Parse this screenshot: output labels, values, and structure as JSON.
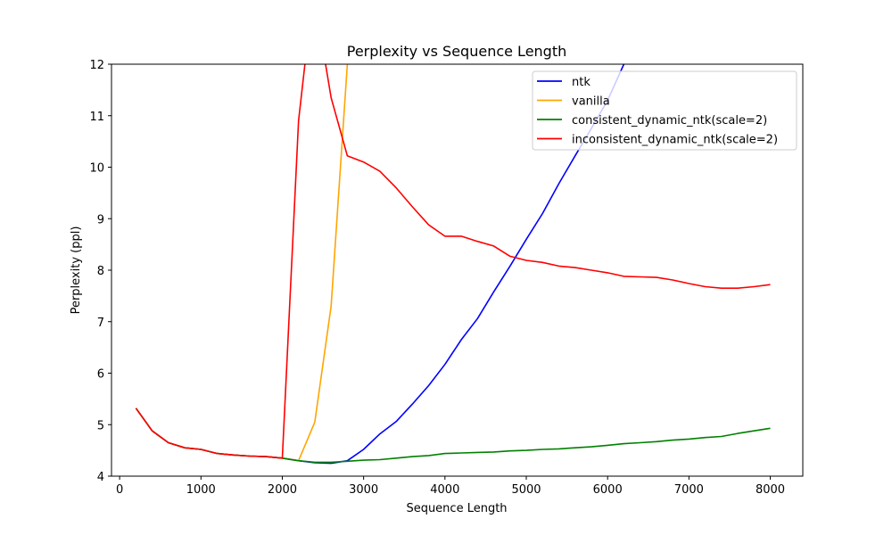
{
  "chart_data": {
    "type": "line",
    "title": "Perplexity vs Sequence Length",
    "xlabel": "Sequence Length",
    "ylabel": "Perplexity (ppl)",
    "xlim": [
      -100,
      8400
    ],
    "ylim": [
      4,
      12
    ],
    "xticks": [
      0,
      1000,
      2000,
      3000,
      4000,
      5000,
      6000,
      7000,
      8000
    ],
    "yticks": [
      4,
      5,
      6,
      7,
      8,
      9,
      10,
      11,
      12
    ],
    "grid": false,
    "legend_position": "upper right",
    "series": [
      {
        "name": "ntk",
        "color": "#0000ff",
        "x": [
          200,
          400,
          600,
          800,
          1000,
          1200,
          1400,
          1600,
          1800,
          2000,
          2200,
          2400,
          2600,
          2800,
          3000,
          3200,
          3400,
          3600,
          3800,
          4000,
          4200,
          4400,
          4600,
          4800,
          5000,
          5200,
          5400,
          5600,
          5800,
          6000,
          6200,
          6400
        ],
        "y": [
          5.32,
          4.88,
          4.65,
          4.55,
          4.52,
          4.44,
          4.41,
          4.39,
          4.38,
          4.35,
          4.3,
          4.26,
          4.25,
          4.3,
          4.52,
          4.82,
          5.06,
          5.4,
          5.76,
          6.17,
          6.65,
          7.06,
          7.58,
          8.08,
          8.6,
          9.1,
          9.68,
          10.22,
          10.75,
          11.3,
          12.0,
          12.9
        ]
      },
      {
        "name": "vanilla",
        "color": "#ffa500",
        "x": [
          200,
          400,
          600,
          800,
          1000,
          1200,
          1400,
          1600,
          1800,
          2000,
          2200,
          2400,
          2600,
          2800,
          2900
        ],
        "y": [
          5.32,
          4.88,
          4.65,
          4.55,
          4.52,
          4.44,
          4.41,
          4.39,
          4.38,
          4.35,
          4.3,
          5.05,
          7.3,
          12.0,
          14.5
        ]
      },
      {
        "name": "consistent_dynamic_ntk(scale=2)",
        "color": "#008000",
        "x": [
          200,
          400,
          600,
          800,
          1000,
          1200,
          1400,
          1600,
          1800,
          2000,
          2200,
          2400,
          2600,
          2800,
          3000,
          3200,
          3400,
          3600,
          3800,
          4000,
          4200,
          4400,
          4600,
          4800,
          5000,
          5200,
          5400,
          5600,
          5800,
          6000,
          6200,
          6400,
          6600,
          6800,
          7000,
          7200,
          7400,
          7600,
          7800,
          8000
        ],
        "y": [
          5.32,
          4.88,
          4.65,
          4.55,
          4.52,
          4.44,
          4.41,
          4.39,
          4.38,
          4.35,
          4.3,
          4.27,
          4.27,
          4.29,
          4.31,
          4.32,
          4.35,
          4.38,
          4.4,
          4.44,
          4.45,
          4.46,
          4.47,
          4.49,
          4.5,
          4.52,
          4.53,
          4.55,
          4.57,
          4.6,
          4.63,
          4.65,
          4.67,
          4.7,
          4.72,
          4.75,
          4.77,
          4.83,
          4.88,
          4.93
        ]
      },
      {
        "name": "inconsistent_dynamic_ntk(scale=2)",
        "color": "#ff0000",
        "x": [
          200,
          400,
          600,
          800,
          1000,
          1200,
          1400,
          1600,
          1800,
          2000,
          2200,
          2300,
          2400,
          2500,
          2600,
          2800,
          3000,
          3200,
          3400,
          3600,
          3800,
          4000,
          4200,
          4400,
          4600,
          4800,
          5000,
          5200,
          5400,
          5600,
          5800,
          6000,
          6200,
          6400,
          6600,
          6800,
          7000,
          7200,
          7400,
          7600,
          7800,
          8000
        ],
        "y": [
          5.32,
          4.88,
          4.65,
          4.55,
          4.52,
          4.44,
          4.41,
          4.39,
          4.38,
          4.35,
          10.9,
          12.3,
          12.4,
          12.3,
          11.35,
          10.22,
          10.1,
          9.92,
          9.6,
          9.23,
          8.88,
          8.66,
          8.66,
          8.56,
          8.47,
          8.27,
          8.19,
          8.15,
          8.08,
          8.05,
          8.0,
          7.95,
          7.88,
          7.87,
          7.86,
          7.81,
          7.74,
          7.68,
          7.65,
          7.65,
          7.68,
          7.72
        ]
      }
    ]
  }
}
